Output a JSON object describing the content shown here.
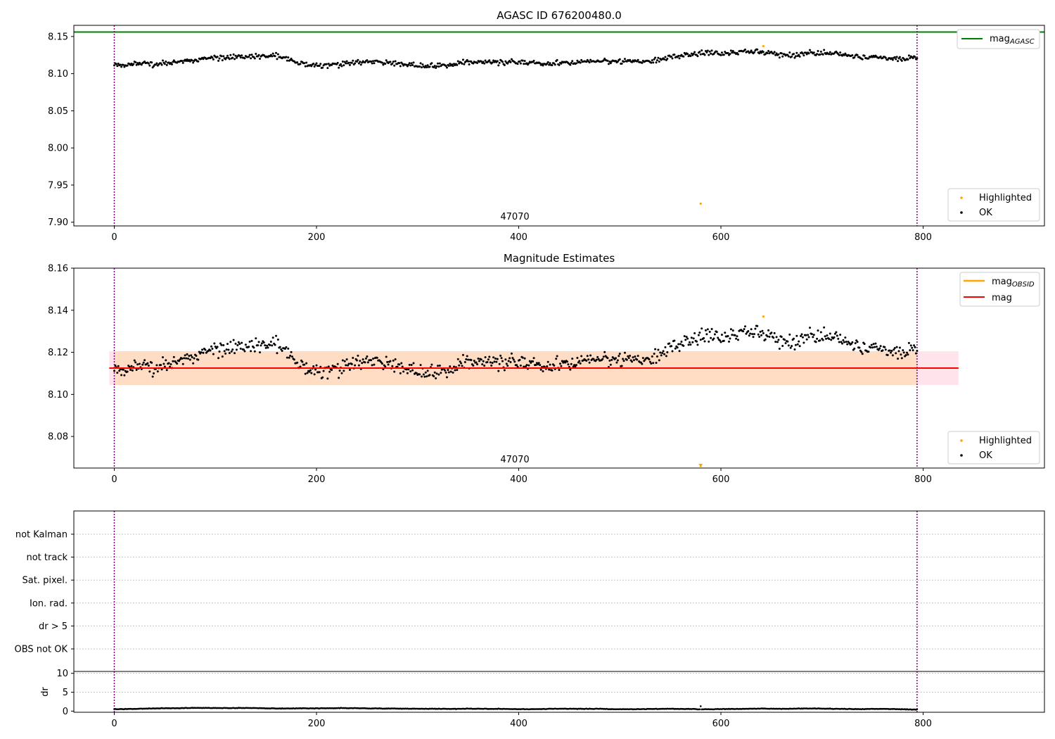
{
  "chart_data": [
    {
      "type": "scatter",
      "title": "AGASC ID 676200480.0",
      "xlim": [
        -40,
        920
      ],
      "ylim": [
        7.895,
        8.165
      ],
      "xticks": [
        0,
        200,
        400,
        600,
        800
      ],
      "yticks": [
        7.9,
        7.95,
        8.0,
        8.05,
        8.1,
        8.15
      ],
      "obsid_label": "47070",
      "obsid_boundaries": [
        0,
        794
      ],
      "series": [
        {
          "name": "Highlighted",
          "color": "#ffa500",
          "x": [
            580,
            642
          ],
          "y": [
            7.925,
            8.137
          ]
        },
        {
          "name": "OK",
          "color": "#000000",
          "x_range": [
            0,
            794
          ],
          "baseline": 8.113
        }
      ],
      "reference_line": {
        "value": 8.156,
        "color": "#008000"
      },
      "legend_upper": [
        {
          "label": "mag",
          "sub": "AGASC",
          "color": "#008000"
        }
      ],
      "legend_lower": [
        {
          "label": "Highlighted",
          "color": "#ffa500"
        },
        {
          "label": "OK",
          "color": "#000000"
        }
      ]
    },
    {
      "type": "scatter",
      "title": "Magnitude Estimates",
      "xlim": [
        -40,
        920
      ],
      "ylim": [
        8.065,
        8.16
      ],
      "xticks": [
        0,
        200,
        400,
        600,
        800
      ],
      "yticks": [
        8.08,
        8.1,
        8.12,
        8.14,
        8.16
      ],
      "obsid_label": "47070",
      "obsid_boundaries": [
        0,
        794
      ],
      "mag_line": {
        "value": 8.1125,
        "color": "#ff0000"
      },
      "band_obsid": {
        "low": 8.1045,
        "high": 8.1205,
        "x": [
          0,
          794
        ],
        "color": "#ffdcc4"
      },
      "band_overall": {
        "low": 8.1045,
        "high": 8.1205,
        "x": [
          -5,
          835
        ],
        "color": "#ffe4ec"
      },
      "highlighted": {
        "x": [
          580,
          642
        ],
        "y": [
          8.066,
          8.137
        ]
      },
      "legend_upper": [
        {
          "label": "mag",
          "sub": "OBSID",
          "color": "#ffa500"
        },
        {
          "label": "mag",
          "color": "#ff0000"
        }
      ],
      "legend_lower": [
        {
          "label": "Highlighted",
          "color": "#ffa500"
        },
        {
          "label": "OK",
          "color": "#000000"
        }
      ]
    },
    {
      "type": "table",
      "flag_rows": [
        "not Kalman",
        "not track",
        "Sat. pixel.",
        "Ion. rad.",
        "dr > 5",
        "OBS not OK"
      ],
      "xlim": [
        -40,
        920
      ],
      "obsid_boundaries": [
        0,
        794
      ]
    },
    {
      "type": "scatter",
      "ylabel": "dr",
      "xlim": [
        -40,
        920
      ],
      "ylim": [
        -0.3,
        10.5
      ],
      "yticks": [
        0,
        5,
        10
      ],
      "xticks": [
        0,
        200,
        400,
        600,
        800
      ],
      "x_range": [
        0,
        794
      ],
      "typical_value": 0.5,
      "obsid_boundaries": [
        0,
        794
      ]
    }
  ]
}
